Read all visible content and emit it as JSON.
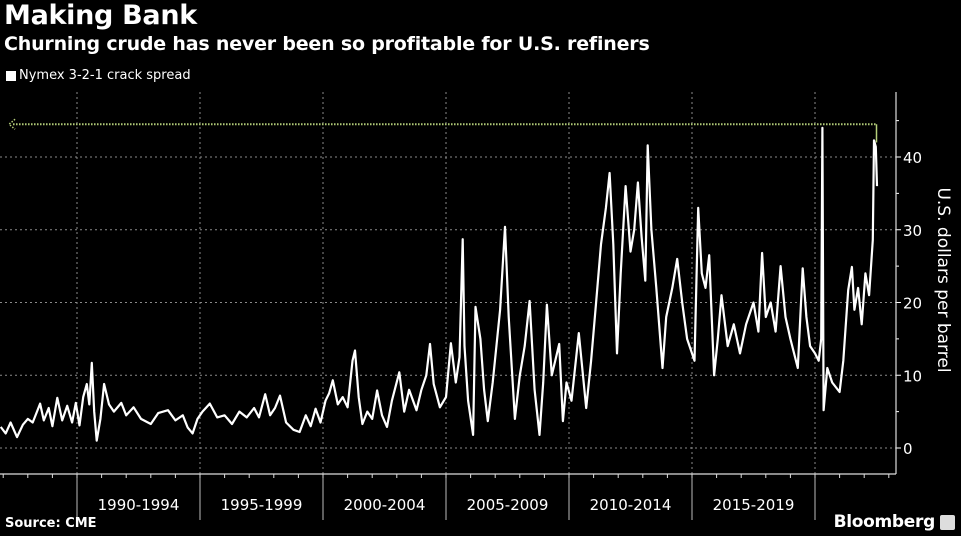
{
  "header": {
    "title": "Making Bank",
    "subtitle": "Churning crude has never been so profitable for U.S. refiners"
  },
  "footer": {
    "source": "Source: CME",
    "brand": "Bloomberg"
  },
  "colors": {
    "background": "#000000",
    "series": "#ffffff",
    "reference_line": "#b5cf7a",
    "grid": "#8a8a8a"
  },
  "chart_data": {
    "type": "line",
    "title": "Making Bank",
    "subtitle": "Churning crude has never been so profitable for U.S. refiners",
    "xlabel": "",
    "ylabel": "U.S. dollars per barrel",
    "xlim": [
      1986.87,
      2023.3
    ],
    "ylim": [
      -3,
      48
    ],
    "y_ticks": [
      0,
      10,
      20,
      30,
      40
    ],
    "y_tick_labels": [
      "0",
      "10",
      "20",
      "30",
      "40"
    ],
    "x_periods": [
      {
        "label": "1990-1994",
        "start": 1990,
        "end": 1995
      },
      {
        "label": "1995-1999",
        "start": 1995,
        "end": 2000
      },
      {
        "label": "2000-2004",
        "start": 2000,
        "end": 2005
      },
      {
        "label": "2005-2009",
        "start": 2005,
        "end": 2010
      },
      {
        "label": "2010-2014",
        "start": 2010,
        "end": 2015
      },
      {
        "label": "2015-2019",
        "start": 2015,
        "end": 2020
      }
    ],
    "grid": true,
    "y_axis_side": "right",
    "legend": {
      "placement": "top-left",
      "entries": [
        "Nymex 3-2-1 crack spread"
      ]
    },
    "reference_line": {
      "value": 44.5,
      "from": 1987.4,
      "to": 2022.5,
      "style": "dotted",
      "arrow": "left"
    },
    "series": [
      {
        "name": "Nymex 3-2-1 crack spread",
        "points": [
          [
            1986.9,
            2.9
          ],
          [
            1987.1,
            2.0
          ],
          [
            1987.3,
            3.5
          ],
          [
            1987.56,
            1.5
          ],
          [
            1987.8,
            3.2
          ],
          [
            1988.0,
            4.0
          ],
          [
            1988.2,
            3.5
          ],
          [
            1988.35,
            4.8
          ],
          [
            1988.5,
            6.1
          ],
          [
            1988.65,
            3.8
          ],
          [
            1988.85,
            5.5
          ],
          [
            1989.0,
            3.0
          ],
          [
            1989.2,
            6.9
          ],
          [
            1989.4,
            3.8
          ],
          [
            1989.6,
            5.8
          ],
          [
            1989.8,
            3.5
          ],
          [
            1989.95,
            6.2
          ],
          [
            1990.1,
            3.1
          ],
          [
            1990.25,
            7.0
          ],
          [
            1990.4,
            8.8
          ],
          [
            1990.5,
            6.0
          ],
          [
            1990.6,
            11.7
          ],
          [
            1990.7,
            5.0
          ],
          [
            1990.8,
            1.0
          ],
          [
            1990.95,
            4.0
          ],
          [
            1991.1,
            8.8
          ],
          [
            1991.3,
            6.0
          ],
          [
            1991.5,
            5.0
          ],
          [
            1991.8,
            6.2
          ],
          [
            1992.0,
            4.5
          ],
          [
            1992.3,
            5.6
          ],
          [
            1992.6,
            4.0
          ],
          [
            1993.0,
            3.3
          ],
          [
            1993.3,
            4.8
          ],
          [
            1993.7,
            5.2
          ],
          [
            1994.0,
            3.8
          ],
          [
            1994.3,
            4.5
          ],
          [
            1994.5,
            2.8
          ],
          [
            1994.7,
            2.0
          ],
          [
            1994.9,
            4.0
          ],
          [
            1995.1,
            5.0
          ],
          [
            1995.4,
            6.1
          ],
          [
            1995.7,
            4.2
          ],
          [
            1996.0,
            4.5
          ],
          [
            1996.3,
            3.3
          ],
          [
            1996.6,
            5.0
          ],
          [
            1996.9,
            4.2
          ],
          [
            1997.2,
            5.5
          ],
          [
            1997.4,
            4.2
          ],
          [
            1997.65,
            7.4
          ],
          [
            1997.85,
            4.5
          ],
          [
            1998.05,
            5.5
          ],
          [
            1998.25,
            7.2
          ],
          [
            1998.5,
            3.5
          ],
          [
            1998.8,
            2.5
          ],
          [
            1999.05,
            2.2
          ],
          [
            1999.3,
            4.5
          ],
          [
            1999.5,
            3.0
          ],
          [
            1999.7,
            5.4
          ],
          [
            1999.9,
            3.5
          ],
          [
            2000.1,
            6.5
          ],
          [
            2000.25,
            7.5
          ],
          [
            2000.4,
            9.3
          ],
          [
            2000.6,
            6.0
          ],
          [
            2000.8,
            7.0
          ],
          [
            2001.0,
            5.6
          ],
          [
            2001.2,
            12.0
          ],
          [
            2001.3,
            13.4
          ],
          [
            2001.45,
            7.0
          ],
          [
            2001.6,
            3.3
          ],
          [
            2001.8,
            5.0
          ],
          [
            2002.0,
            4.0
          ],
          [
            2002.2,
            7.9
          ],
          [
            2002.4,
            4.5
          ],
          [
            2002.6,
            2.9
          ],
          [
            2002.8,
            6.5
          ],
          [
            2003.1,
            10.4
          ],
          [
            2003.3,
            5.0
          ],
          [
            2003.5,
            8.0
          ],
          [
            2003.8,
            5.2
          ],
          [
            2004.0,
            8.0
          ],
          [
            2004.2,
            10.0
          ],
          [
            2004.35,
            14.3
          ],
          [
            2004.5,
            8.8
          ],
          [
            2004.75,
            5.6
          ],
          [
            2005.0,
            7.0
          ],
          [
            2005.2,
            14.4
          ],
          [
            2005.4,
            9.0
          ],
          [
            2005.55,
            12.5
          ],
          [
            2005.68,
            28.7
          ],
          [
            2005.75,
            14.0
          ],
          [
            2005.9,
            6.5
          ],
          [
            2006.1,
            1.8
          ],
          [
            2006.2,
            19.4
          ],
          [
            2006.4,
            15.0
          ],
          [
            2006.55,
            8.0
          ],
          [
            2006.7,
            3.7
          ],
          [
            2006.9,
            9.0
          ],
          [
            2007.2,
            19.0
          ],
          [
            2007.4,
            30.4
          ],
          [
            2007.55,
            18.0
          ],
          [
            2007.8,
            4.0
          ],
          [
            2008.0,
            10.0
          ],
          [
            2008.2,
            14.0
          ],
          [
            2008.4,
            20.2
          ],
          [
            2008.6,
            8.0
          ],
          [
            2008.8,
            1.8
          ],
          [
            2008.95,
            9.0
          ],
          [
            2009.1,
            19.7
          ],
          [
            2009.3,
            10.0
          ],
          [
            2009.6,
            14.3
          ],
          [
            2009.75,
            3.7
          ],
          [
            2009.9,
            9.0
          ],
          [
            2010.1,
            6.5
          ],
          [
            2010.4,
            15.8
          ],
          [
            2010.7,
            5.5
          ],
          [
            2010.9,
            12.0
          ],
          [
            2011.1,
            20.0
          ],
          [
            2011.3,
            28.0
          ],
          [
            2011.5,
            33.0
          ],
          [
            2011.65,
            37.8
          ],
          [
            2011.8,
            28.0
          ],
          [
            2011.95,
            13.0
          ],
          [
            2012.1,
            24.0
          ],
          [
            2012.3,
            36.0
          ],
          [
            2012.5,
            27.0
          ],
          [
            2012.65,
            30.0
          ],
          [
            2012.8,
            36.5
          ],
          [
            2012.95,
            29.0
          ],
          [
            2013.1,
            23.0
          ],
          [
            2013.2,
            41.6
          ],
          [
            2013.35,
            30.0
          ],
          [
            2013.55,
            22.0
          ],
          [
            2013.8,
            11.0
          ],
          [
            2013.95,
            18.0
          ],
          [
            2014.2,
            22.0
          ],
          [
            2014.4,
            26.0
          ],
          [
            2014.6,
            20.0
          ],
          [
            2014.8,
            15.0
          ],
          [
            2015.1,
            12.0
          ],
          [
            2015.25,
            33.0
          ],
          [
            2015.4,
            24.0
          ],
          [
            2015.55,
            22.0
          ],
          [
            2015.7,
            26.5
          ],
          [
            2015.9,
            10.0
          ],
          [
            2016.05,
            15.0
          ],
          [
            2016.2,
            21.0
          ],
          [
            2016.45,
            14.0
          ],
          [
            2016.7,
            17.0
          ],
          [
            2016.95,
            13.0
          ],
          [
            2017.2,
            17.0
          ],
          [
            2017.5,
            20.0
          ],
          [
            2017.7,
            16.0
          ],
          [
            2017.85,
            26.8
          ],
          [
            2018.0,
            18.0
          ],
          [
            2018.2,
            20.0
          ],
          [
            2018.4,
            16.0
          ],
          [
            2018.6,
            25.0
          ],
          [
            2018.8,
            18.0
          ],
          [
            2019.0,
            15.0
          ],
          [
            2019.3,
            11.0
          ],
          [
            2019.5,
            24.7
          ],
          [
            2019.65,
            18.0
          ],
          [
            2019.8,
            14.0
          ],
          [
            2020.0,
            13.0
          ],
          [
            2020.15,
            12.0
          ],
          [
            2020.25,
            15.0
          ],
          [
            2020.3,
            44.0
          ],
          [
            2020.35,
            5.2
          ],
          [
            2020.5,
            11.0
          ],
          [
            2020.7,
            9.0
          ],
          [
            2021.0,
            7.7
          ],
          [
            2021.15,
            12.0
          ],
          [
            2021.35,
            21.7
          ],
          [
            2021.5,
            24.9
          ],
          [
            2021.6,
            19.0
          ],
          [
            2021.75,
            22.0
          ],
          [
            2021.9,
            17.0
          ],
          [
            2022.05,
            24.0
          ],
          [
            2022.2,
            21.0
          ],
          [
            2022.35,
            28.6
          ],
          [
            2022.4,
            42.3
          ],
          [
            2022.47,
            41.4
          ],
          [
            2022.52,
            36.0
          ]
        ]
      }
    ]
  }
}
